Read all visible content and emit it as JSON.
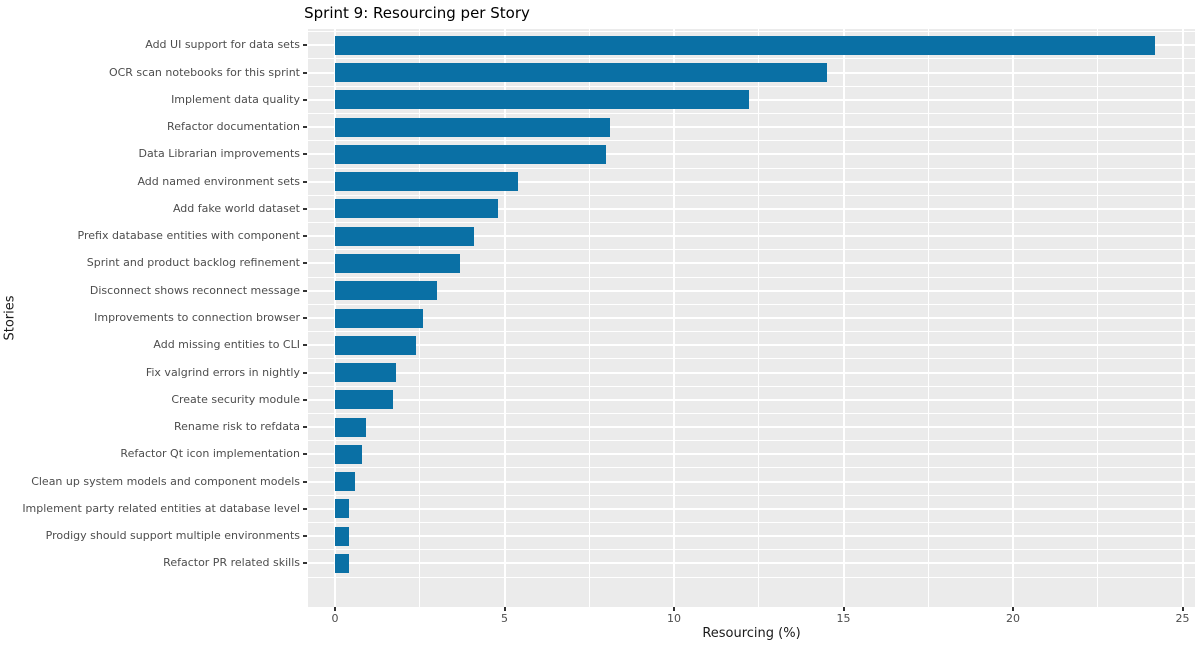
{
  "chart_data": {
    "type": "bar",
    "orientation": "horizontal",
    "title": "Sprint 9: Resourcing per Story",
    "xlabel": "Resourcing (%)",
    "ylabel": "Stories",
    "xlim": [
      0,
      25
    ],
    "x_ticks": [
      0,
      5,
      10,
      15,
      20,
      25
    ],
    "x_tick_labels": [
      "0",
      "5",
      "10",
      "15",
      "20",
      "25"
    ],
    "x_minor_ticks": [
      2.5,
      7.5,
      12.5,
      17.5,
      22.5
    ],
    "legend": "none",
    "grid": "white major and minor gridlines on gray panel",
    "categories": [
      "Add UI support for data sets",
      "OCR scan notebooks for this sprint",
      "Implement data quality",
      "Refactor documentation",
      "Data Librarian improvements",
      "Add named environment sets",
      "Add fake world dataset",
      "Prefix database entities with component",
      "Sprint and product backlog refinement",
      "Disconnect shows reconnect message",
      "Improvements to connection browser",
      "Add missing entities to CLI",
      "Fix valgrind errors in nightly",
      "Create security module",
      "Rename risk to refdata",
      "Refactor Qt icon implementation",
      "Clean up system models and component models",
      "Implement party related entities at database level",
      "Prodigy should support multiple environments",
      "Refactor PR related skills"
    ],
    "values": [
      24.2,
      14.5,
      12.2,
      8.1,
      8.0,
      5.4,
      4.8,
      4.1,
      3.7,
      3.0,
      2.6,
      2.4,
      1.8,
      1.7,
      0.9,
      0.8,
      0.6,
      0.4,
      0.4,
      0.4
    ]
  },
  "style": {
    "bar_color": "#0a70a5",
    "panel_bg": "#ebebeb",
    "grid_color": "#ffffff",
    "tick_label_color": "#4d4d4d",
    "tick_mark_color": "#333333",
    "axis_title_color": "#1a1a1a",
    "title_color": "#000000",
    "background": "#ffffff"
  }
}
